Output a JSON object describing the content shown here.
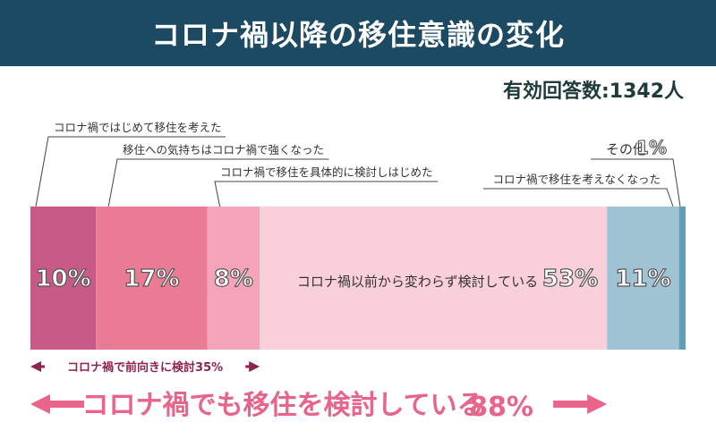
{
  "header": {
    "title": "コロナ禍以降の移住意識の変化"
  },
  "responses_label": "有効回答数:1342人",
  "chart_data": {
    "type": "bar",
    "orientation": "horizontal-stacked-100",
    "segments": [
      {
        "label": "コロナ禍ではじめて移住を考えた",
        "value": 10,
        "value_label": "10%",
        "color": "#c75a86"
      },
      {
        "label": "移住への気持ちはコロナ禍で強くなった",
        "value": 17,
        "value_label": "17%",
        "color": "#ea7b95"
      },
      {
        "label": "コロナ禍で移住を具体的に検討しはじめた",
        "value": 8,
        "value_label": "8%",
        "color": "#f4a3b8"
      },
      {
        "label": "コロナ禍以前から変わらず検討している",
        "value": 53,
        "value_label": "53%",
        "color": "#f9cfd9"
      },
      {
        "label": "コロナ禍で移住を考えなくなった",
        "value": 11,
        "value_label": "11%",
        "color": "#9fc3d3"
      },
      {
        "label": "その他",
        "value": 1,
        "value_label": "1%",
        "color": "#5c9fbc"
      }
    ],
    "brackets": [
      {
        "label": "コロナ禍で前向きに検討35%",
        "from": 0,
        "to": 35,
        "color": "#8e2350"
      },
      {
        "label": "コロナ禍でも移住を検討している",
        "value_label": "88%",
        "from": 0,
        "to": 88,
        "color": "#e8648a"
      }
    ],
    "xlim": [
      0,
      100
    ]
  }
}
